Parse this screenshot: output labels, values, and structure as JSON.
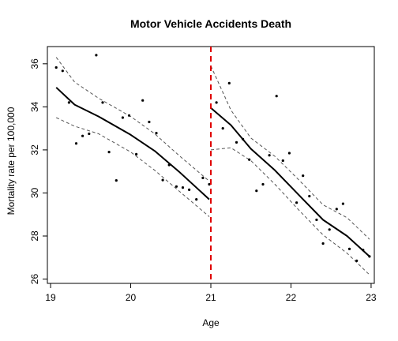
{
  "chart_data": {
    "type": "scatter",
    "title": "Motor Vehicle Accidents Death",
    "xlabel": "Age",
    "ylabel": "Mortality rate per 100,000",
    "xlim": [
      18.96,
      23.04
    ],
    "ylim": [
      25.8,
      36.8
    ],
    "xticks": [
      19,
      20,
      21,
      22,
      23
    ],
    "yticks": [
      26,
      28,
      30,
      32,
      34,
      36
    ],
    "grid": false,
    "legend": "none",
    "cutoff": 21,
    "colors": {
      "cutoff": "#e00000",
      "points": "#000000",
      "fit": "#000000",
      "ci": "#555555"
    },
    "points": [
      {
        "x": 19.07,
        "y": 35.83
      },
      {
        "x": 19.15,
        "y": 35.67
      },
      {
        "x": 19.23,
        "y": 34.2
      },
      {
        "x": 19.32,
        "y": 32.3
      },
      {
        "x": 19.4,
        "y": 32.65
      },
      {
        "x": 19.48,
        "y": 32.75
      },
      {
        "x": 19.57,
        "y": 36.4
      },
      {
        "x": 19.65,
        "y": 34.2
      },
      {
        "x": 19.73,
        "y": 31.9
      },
      {
        "x": 19.82,
        "y": 30.58
      },
      {
        "x": 19.9,
        "y": 33.5
      },
      {
        "x": 19.98,
        "y": 33.6
      },
      {
        "x": 20.07,
        "y": 31.8
      },
      {
        "x": 20.15,
        "y": 34.3
      },
      {
        "x": 20.23,
        "y": 33.3
      },
      {
        "x": 20.32,
        "y": 32.78
      },
      {
        "x": 20.4,
        "y": 30.6
      },
      {
        "x": 20.48,
        "y": 31.3
      },
      {
        "x": 20.57,
        "y": 30.3
      },
      {
        "x": 20.65,
        "y": 30.25
      },
      {
        "x": 20.73,
        "y": 30.15
      },
      {
        "x": 20.82,
        "y": 29.7
      },
      {
        "x": 20.9,
        "y": 30.7
      },
      {
        "x": 20.98,
        "y": 30.4
      },
      {
        "x": 21.07,
        "y": 34.2
      },
      {
        "x": 21.15,
        "y": 33.0
      },
      {
        "x": 21.23,
        "y": 35.1
      },
      {
        "x": 21.32,
        "y": 32.35
      },
      {
        "x": 21.4,
        "y": 32.5
      },
      {
        "x": 21.48,
        "y": 31.55
      },
      {
        "x": 21.57,
        "y": 30.1
      },
      {
        "x": 21.65,
        "y": 30.4
      },
      {
        "x": 21.73,
        "y": 31.75
      },
      {
        "x": 21.82,
        "y": 34.5
      },
      {
        "x": 21.9,
        "y": 31.5
      },
      {
        "x": 21.98,
        "y": 31.85
      },
      {
        "x": 22.07,
        "y": 29.55
      },
      {
        "x": 22.15,
        "y": 30.8
      },
      {
        "x": 22.23,
        "y": 29.85
      },
      {
        "x": 22.32,
        "y": 28.75
      },
      {
        "x": 22.4,
        "y": 27.65
      },
      {
        "x": 22.48,
        "y": 28.3
      },
      {
        "x": 22.57,
        "y": 29.25
      },
      {
        "x": 22.65,
        "y": 29.5
      },
      {
        "x": 22.73,
        "y": 27.4
      },
      {
        "x": 22.82,
        "y": 26.85
      },
      {
        "x": 22.9,
        "y": 27.35
      },
      {
        "x": 22.98,
        "y": 27.05
      }
    ],
    "fit_segments": [
      {
        "x": [
          19.07,
          19.3,
          19.6,
          20.0,
          20.3,
          20.6,
          20.98
        ],
        "fit": [
          34.9,
          34.1,
          33.55,
          32.7,
          31.95,
          31.0,
          29.7
        ],
        "upper": [
          36.3,
          35.15,
          34.4,
          33.55,
          32.75,
          31.75,
          30.55
        ],
        "lower": [
          33.5,
          33.1,
          32.75,
          31.9,
          31.05,
          30.1,
          28.9
        ]
      },
      {
        "x": [
          21.0,
          21.25,
          21.5,
          21.8,
          22.1,
          22.4,
          22.7,
          22.98
        ],
        "fit": [
          33.95,
          33.15,
          32.05,
          31.05,
          29.9,
          28.75,
          28.0,
          27.05
        ],
        "upper": [
          35.9,
          33.85,
          32.55,
          31.7,
          30.6,
          29.45,
          28.85,
          27.85
        ],
        "lower": [
          32.0,
          32.1,
          31.5,
          30.4,
          29.2,
          28.05,
          27.2,
          26.2
        ]
      }
    ]
  }
}
